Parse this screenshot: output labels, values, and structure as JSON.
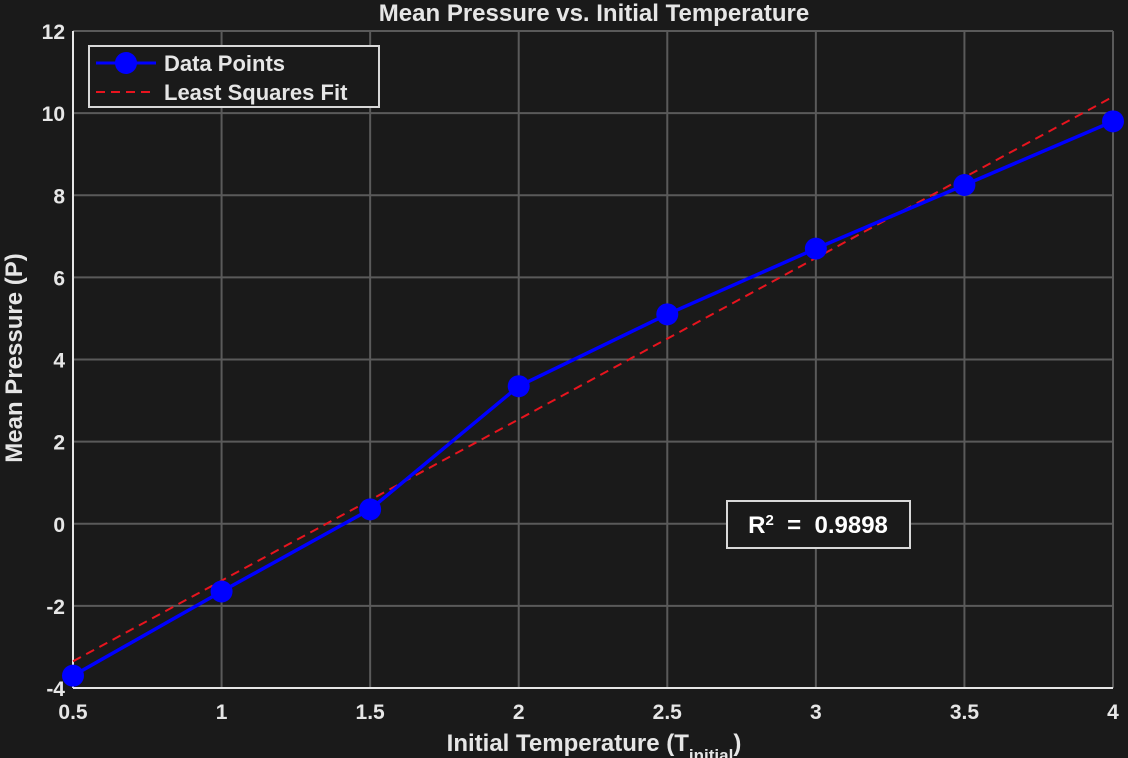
{
  "chart_data": {
    "type": "line",
    "title": "Mean Pressure vs. Initial Temperature",
    "xlabel": "Initial  Temperature  (T",
    "xlabel_sub": "initial",
    "xlabel_end": ")",
    "ylabel": "Mean Pressure (P)",
    "xlim": [
      0.5,
      4
    ],
    "ylim": [
      -4,
      12
    ],
    "xticks": [
      0.5,
      1,
      1.5,
      2,
      2.5,
      3,
      3.5,
      4
    ],
    "xtick_labels": [
      "0.5",
      "1",
      "1.5",
      "2",
      "2.5",
      "3",
      "3.5",
      "4"
    ],
    "yticks": [
      -4,
      -2,
      0,
      2,
      4,
      6,
      8,
      10,
      12
    ],
    "ytick_labels": [
      "-4",
      "-2",
      "0",
      "2",
      "4",
      "6",
      "8",
      "10",
      "12"
    ],
    "grid": true,
    "legend_position": "top-left",
    "background": "#1a1a1a",
    "series": [
      {
        "name": "Data Points",
        "color": "#0000ff",
        "style": "solid-markers",
        "x": [
          0.5,
          1,
          1.5,
          2,
          2.5,
          3,
          3.5,
          4
        ],
        "y": [
          -3.7,
          -1.65,
          0.35,
          3.35,
          5.1,
          6.7,
          8.25,
          9.8
        ]
      },
      {
        "name": "Least Squares Fit",
        "color": "#e8141e",
        "style": "dashed",
        "x": [
          0.5,
          4
        ],
        "y": [
          -3.35,
          10.4
        ]
      }
    ],
    "annotation": {
      "prefix": "R",
      "superscript": "2",
      "rest": "  =  0.9898"
    }
  }
}
